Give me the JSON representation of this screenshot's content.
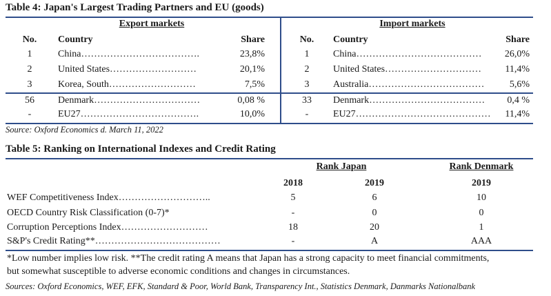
{
  "table4": {
    "title": "Table 4: Japan's Largest Trading Partners and EU (goods)",
    "export": {
      "heading": "Export markets",
      "col_no": "No.",
      "col_country": "Country",
      "col_share": "Share",
      "rows": [
        {
          "no": "1",
          "country": "China……………………………….",
          "share": "23,8%"
        },
        {
          "no": "2",
          "country": "United States………………………",
          "share": "20,1%"
        },
        {
          "no": "3",
          "country": "Korea, South………………………",
          "share": "7,5%"
        },
        {
          "no": "56",
          "country": "Denmark……………………………",
          "share": "0,08 %"
        },
        {
          "no": "-",
          "country": "EU27……………………………….",
          "share": "10,0%"
        }
      ]
    },
    "import": {
      "heading": "Import markets",
      "col_no": "No.",
      "col_country": "Country",
      "col_share": "Share",
      "rows": [
        {
          "no": "1",
          "country": "China…………………………………",
          "share": "26,0%"
        },
        {
          "no": "2",
          "country": "United States…………………………",
          "share": "11,4%"
        },
        {
          "no": "3",
          "country": "Australia………………………………",
          "share": "5,6%"
        },
        {
          "no": "33",
          "country": "Denmark………………………………",
          "share": "0,4 %"
        },
        {
          "no": "-",
          "country": "EU27……………………………………",
          "share": "11,4%"
        }
      ]
    },
    "source": "Source: Oxford Economics d. March 11, 2022"
  },
  "table5": {
    "title": "Table 5: Ranking on International Indexes and Credit Rating",
    "group_japan": "Rank Japan",
    "group_denmark": "Rank Denmark",
    "year_j1": "2018",
    "year_j2": "2019",
    "year_d": "2019",
    "rows": [
      {
        "label": "WEF Competitiveness Index………………………..",
        "j2018": "5",
        "j2019": "6",
        "dk2019": "10"
      },
      {
        "label": "OECD Country Risk Classification (0-7)*",
        "j2018": "-",
        "j2019": "0",
        "dk2019": "0"
      },
      {
        "label": "Corruption Perceptions Index………………………",
        "j2018": "18",
        "j2019": "20",
        "dk2019": "1"
      },
      {
        "label": "S&P's Credit Rating**…………………………………",
        "j2018": "-",
        "j2019": "A",
        "dk2019": "AAA"
      }
    ],
    "note": "*Low number implies low risk. **The credit rating A means that Japan has a strong capacity to meet financial commitments, but somewhat susceptible to adverse economic conditions and changes in circumstances.",
    "sources": "Sources: Oxford Economics, WEF, EFK, Standard & Poor, World Bank, Transparency Int., Statistics Denmark, Danmarks Nationalbank"
  }
}
